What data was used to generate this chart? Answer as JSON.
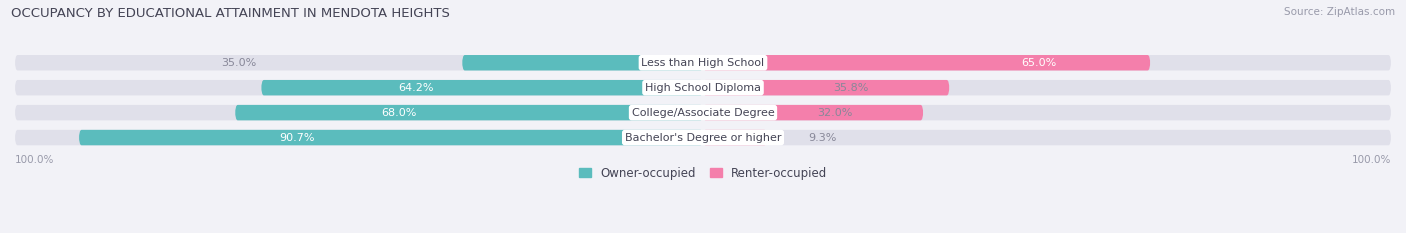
{
  "title": "OCCUPANCY BY EDUCATIONAL ATTAINMENT IN MENDOTA HEIGHTS",
  "source": "Source: ZipAtlas.com",
  "categories": [
    "Less than High School",
    "High School Diploma",
    "College/Associate Degree",
    "Bachelor's Degree or higher"
  ],
  "owner_pct": [
    35.0,
    64.2,
    68.0,
    90.7
  ],
  "renter_pct": [
    65.0,
    35.8,
    32.0,
    9.3
  ],
  "owner_color": "#5bbcbd",
  "renter_color": "#f47fab",
  "bg_color": "#f2f2f7",
  "bar_bg_color": "#e0e0ea",
  "bar_height": 0.62,
  "title_fontsize": 9.5,
  "label_fontsize": 8.0,
  "source_fontsize": 7.5,
  "legend_fontsize": 8.5,
  "axis_label_fontsize": 7.5,
  "left_label_100": "100.0%",
  "right_label_100": "100.0%"
}
